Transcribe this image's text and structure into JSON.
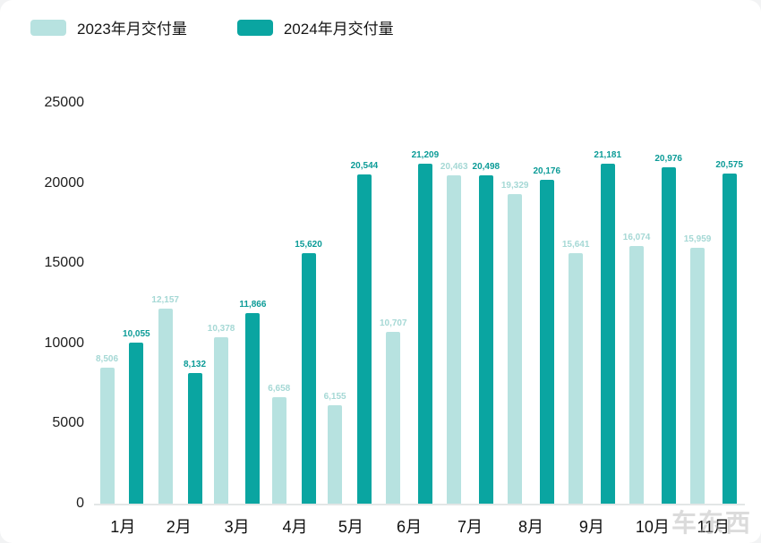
{
  "legend": {
    "item2023": "2023年月交付量",
    "item2024": "2024年月交付量"
  },
  "colors": {
    "c2023": "#b7e2e0",
    "c2024": "#0aa5a1",
    "label2023": "#a5d8d5",
    "label2024": "#0b9b97",
    "baseline": "#e3e6e6"
  },
  "watermark": "车东西",
  "chart_data": {
    "type": "bar",
    "categories": [
      "1月",
      "2月",
      "3月",
      "4月",
      "5月",
      "6月",
      "7月",
      "8月",
      "9月",
      "10月",
      "11月"
    ],
    "series": [
      {
        "key": "2023",
        "name": "2023年月交付量",
        "values": [
          8506,
          12157,
          10378,
          6658,
          6155,
          10707,
          20463,
          19329,
          15641,
          16074,
          15959
        ]
      },
      {
        "key": "2024",
        "name": "2024年月交付量",
        "values": [
          10055,
          8132,
          11866,
          15620,
          20544,
          21209,
          20498,
          20176,
          21181,
          20976,
          20575
        ]
      }
    ],
    "xlabel": "",
    "ylabel": "",
    "ylim": [
      0,
      25000
    ],
    "yticks": [
      0,
      5000,
      10000,
      15000,
      20000,
      25000
    ],
    "grid": false,
    "legend_position": "top-left"
  }
}
